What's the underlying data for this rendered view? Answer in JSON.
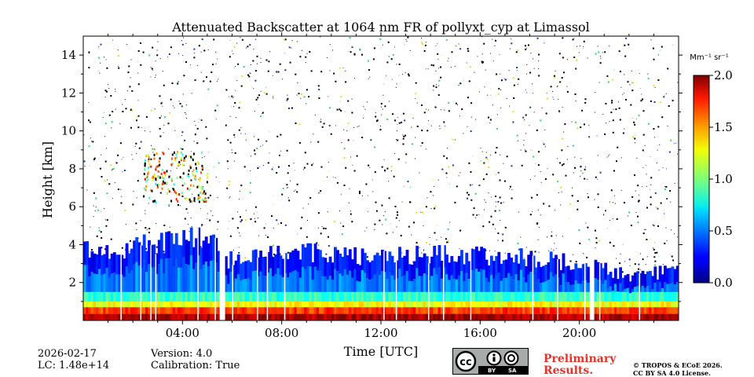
{
  "chart_data": {
    "type": "heatmap",
    "title": "Attenuated Backscatter at 1064 nm FR of pollyxt_cyp at Limassol",
    "xlabel": "Time [UTC]",
    "ylabel": "Height [km]",
    "xlim": [
      0,
      24
    ],
    "ylim": [
      0,
      15
    ],
    "x_ticks": [
      "04:00",
      "08:00",
      "12:00",
      "16:00",
      "20:00"
    ],
    "x_tick_values": [
      4,
      8,
      12,
      16,
      20
    ],
    "y_ticks": [
      "2",
      "4",
      "6",
      "8",
      "10",
      "12",
      "14"
    ],
    "y_tick_values": [
      2,
      4,
      6,
      8,
      10,
      12,
      14
    ],
    "colorbar": {
      "unit": "Mm⁻¹ sr⁻¹",
      "range": [
        0.0,
        2.0
      ],
      "ticks": [
        "0.0",
        "0.5",
        "1.0",
        "1.5",
        "2.0"
      ],
      "tick_values": [
        0.0,
        0.5,
        1.0,
        1.5,
        2.0
      ],
      "colormap": "jet"
    },
    "data_gaps_utc": [
      [
        5.5,
        5.72
      ],
      [
        20.42,
        20.58
      ]
    ],
    "boundary_layer_top_km": [
      [
        0.0,
        3.7
      ],
      [
        1.0,
        3.6
      ],
      [
        2.0,
        3.9
      ],
      [
        3.0,
        4.1
      ],
      [
        4.0,
        4.3
      ],
      [
        5.0,
        4.4
      ],
      [
        5.5,
        4.2
      ],
      [
        5.72,
        3.2
      ],
      [
        7.0,
        3.4
      ],
      [
        8.0,
        3.5
      ],
      [
        10.0,
        3.6
      ],
      [
        12.0,
        3.3
      ],
      [
        14.0,
        3.5
      ],
      [
        16.0,
        3.4
      ],
      [
        18.0,
        3.3
      ],
      [
        20.0,
        3.0
      ],
      [
        22.0,
        2.4
      ],
      [
        24.0,
        2.6
      ]
    ],
    "cloud_layers": [
      {
        "start_utc": 2.4,
        "end_utc": 5.0,
        "base_km": 6.3,
        "top_km": 9.0,
        "value": 0.9
      }
    ]
  },
  "footer": {
    "date": "2026-02-17",
    "lc": "LC: 1.48e+14",
    "version": "Version: 4.0",
    "calibration": "Calibration: True",
    "preliminary_line1": "Preliminary",
    "preliminary_line2": "Results.",
    "copyright_line1": "© TROPOS & ECoE 2026.",
    "copyright_line2": "CC BY SA 4.0 License.",
    "license_badge": {
      "cc": "cc",
      "by": "BY",
      "sa": "SA"
    }
  },
  "colors": {
    "jet_low": "#00007f",
    "jet_high": "#7f0000",
    "prelim": "#e8332a"
  }
}
